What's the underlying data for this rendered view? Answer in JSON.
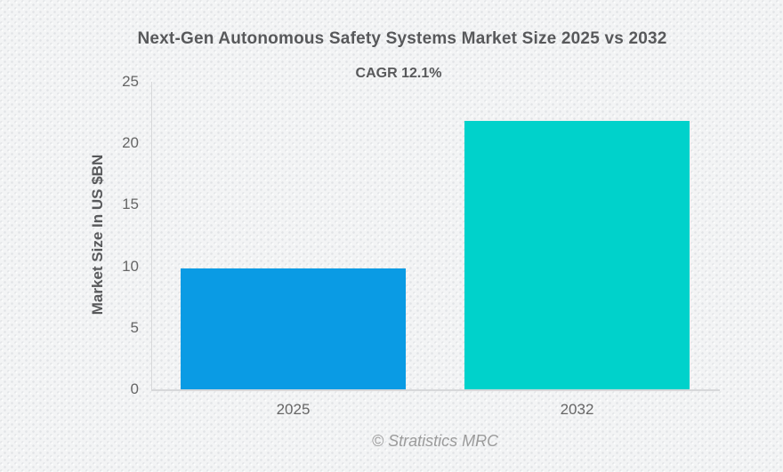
{
  "chart_data": {
    "type": "bar",
    "title": "Next-Gen Autonomous Safety Systems Market Size 2025 vs 2032",
    "subtitle": "CAGR 12.1%",
    "categories": [
      "2025",
      "2032"
    ],
    "series": [
      {
        "name": "Market Size",
        "values": [
          9.8,
          21.8
        ],
        "bar_colors": [
          "#0a9be4",
          "#00d2cb"
        ]
      }
    ],
    "xlabel": "",
    "ylabel": "Market Size In US $BN",
    "ylim": [
      0,
      25
    ],
    "yticks": [
      0,
      5,
      10,
      15,
      20,
      25
    ],
    "grid": false,
    "legend_position": "none",
    "credits": "© Stratistics MRC",
    "colors": {
      "bar_2025": "#0a9be4",
      "bar_2032": "#00d2cb",
      "title_text": "#58595b",
      "tick_text": "#666666",
      "axis_line": "#d7d8da",
      "credits_text": "#9b9b9b",
      "background": "#f3f4f5",
      "background_dot": "#e1e3e6"
    }
  }
}
